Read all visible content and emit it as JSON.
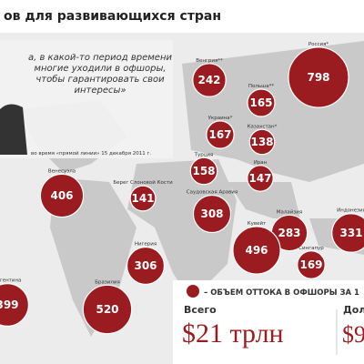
{
  "header": {
    "title": "ов для развивающихся стран"
  },
  "quote": {
    "text": "а, в какой-то период времени многие уходили в офшоры, чтобы гарантировать свои интересы»",
    "caption": "во время «прямой линии» 15 декабря 2011 г."
  },
  "bubbles": [
    {
      "label": "Россия*",
      "value": "798"
    },
    {
      "label": "Венгрия**",
      "value": "242"
    },
    {
      "label": "Польша**",
      "value": "165"
    },
    {
      "label": "Украина*",
      "value": "167"
    },
    {
      "label": "Казахстан*",
      "value": "138"
    },
    {
      "label": "Турция",
      "value": "158"
    },
    {
      "label": "Иран",
      "value": "147"
    },
    {
      "label": "Венесуэла",
      "value": "406"
    },
    {
      "label": "Берег Слоновой Кости",
      "value": "141"
    },
    {
      "label": "Саудовская Аравия",
      "value": "308"
    },
    {
      "label": "Малайзия",
      "value": "283"
    },
    {
      "label": "Индонезия",
      "value": "331"
    },
    {
      "label": "Кувейт",
      "value": "496"
    },
    {
      "label": "Нигерия",
      "value": "306"
    },
    {
      "label": "Сингапур",
      "value": "169"
    },
    {
      "label": "Бразилия",
      "value": "520"
    },
    {
      "label": "Аргентина",
      "value": "399"
    }
  ],
  "legend": {
    "text": "– ОБЪЕМ ОТТОКА В ОФШОРЫ ЗА 1"
  },
  "totals": {
    "label": "Всего",
    "value": "$21 трлн",
    "label2": "Дол",
    "value2": "$9"
  }
}
